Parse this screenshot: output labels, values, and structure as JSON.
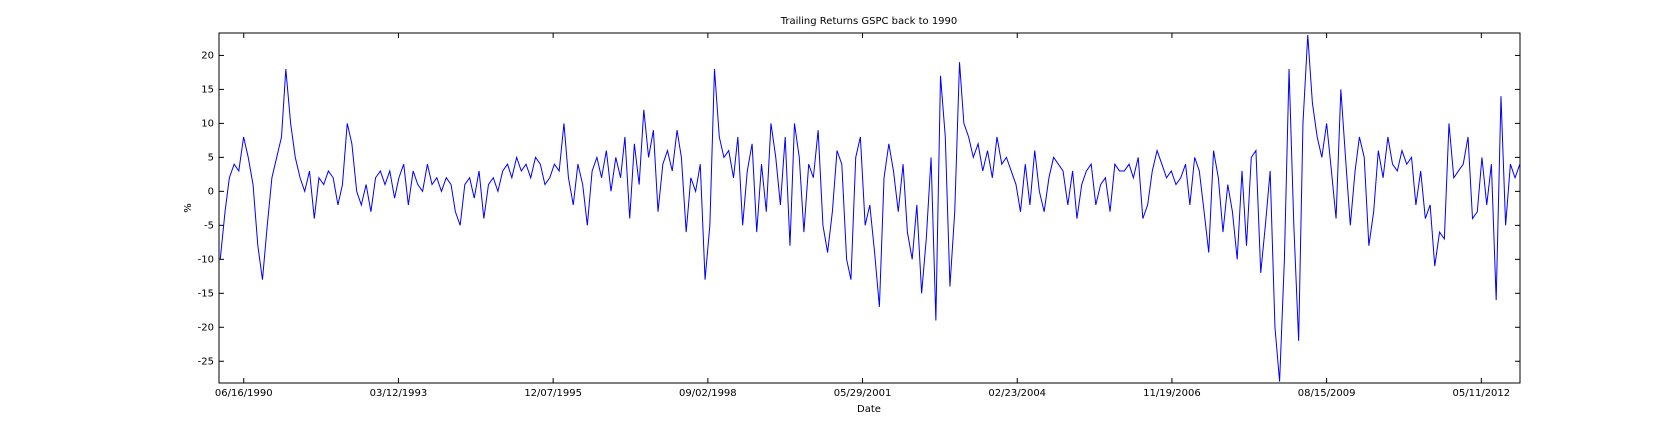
{
  "chart_data": {
    "type": "line",
    "title": "Trailing Returns GSPC back to 1990",
    "xlabel": "Date",
    "ylabel": "%",
    "color": "#0000ff",
    "xlim": [
      "1990-01-07",
      "2013-01-16"
    ],
    "xticks": [
      {
        "value": "1990-06-16",
        "label": "06/16/1990"
      },
      {
        "value": "1993-03-12",
        "label": "03/12/1993"
      },
      {
        "value": "1995-12-07",
        "label": "12/07/1995"
      },
      {
        "value": "1998-09-02",
        "label": "09/02/1998"
      },
      {
        "value": "2001-05-29",
        "label": "05/29/2001"
      },
      {
        "value": "2004-02-23",
        "label": "02/23/2004"
      },
      {
        "value": "2006-11-19",
        "label": "11/19/2006"
      },
      {
        "value": "2009-08-15",
        "label": "08/15/2009"
      },
      {
        "value": "2012-05-11",
        "label": "05/11/2012"
      }
    ],
    "ylim": [
      -28.2,
      23.3
    ],
    "yticks": [
      -25,
      -20,
      -15,
      -10,
      -5,
      0,
      5,
      10,
      15,
      20
    ],
    "x": [
      "1990-01-15",
      "1990-02-15",
      "1990-03-15",
      "1990-04-15",
      "1990-05-15",
      "1990-06-15",
      "1990-07-15",
      "1990-08-15",
      "1990-09-15",
      "1990-10-15",
      "1990-11-15",
      "1990-12-15",
      "1991-01-15",
      "1991-02-15",
      "1991-03-15",
      "1991-04-15",
      "1991-05-15",
      "1991-06-15",
      "1991-07-15",
      "1991-08-15",
      "1991-09-15",
      "1991-10-15",
      "1991-11-15",
      "1991-12-15",
      "1992-01-15",
      "1992-02-15",
      "1992-03-15",
      "1992-04-15",
      "1992-05-15",
      "1992-06-15",
      "1992-07-15",
      "1992-08-15",
      "1992-09-15",
      "1992-10-15",
      "1992-11-15",
      "1992-12-15",
      "1993-01-15",
      "1993-02-15",
      "1993-03-15",
      "1993-04-15",
      "1993-05-15",
      "1993-06-15",
      "1993-07-15",
      "1993-08-15",
      "1993-09-15",
      "1993-10-15",
      "1993-11-15",
      "1993-12-15",
      "1994-01-15",
      "1994-02-15",
      "1994-03-15",
      "1994-04-15",
      "1994-05-15",
      "1994-06-15",
      "1994-07-15",
      "1994-08-15",
      "1994-09-15",
      "1994-10-15",
      "1994-11-15",
      "1994-12-15",
      "1995-01-15",
      "1995-02-15",
      "1995-03-15",
      "1995-04-15",
      "1995-05-15",
      "1995-06-15",
      "1995-07-15",
      "1995-08-15",
      "1995-09-15",
      "1995-10-15",
      "1995-11-15",
      "1995-12-15",
      "1996-01-15",
      "1996-02-15",
      "1996-03-15",
      "1996-04-15",
      "1996-05-15",
      "1996-06-15",
      "1996-07-15",
      "1996-08-15",
      "1996-09-15",
      "1996-10-15",
      "1996-11-15",
      "1996-12-15",
      "1997-01-15",
      "1997-02-15",
      "1997-03-15",
      "1997-04-15",
      "1997-05-15",
      "1997-06-15",
      "1997-07-15",
      "1997-08-15",
      "1997-09-15",
      "1997-10-15",
      "1997-11-15",
      "1997-12-15",
      "1998-01-15",
      "1998-02-15",
      "1998-03-15",
      "1998-04-15",
      "1998-05-15",
      "1998-06-15",
      "1998-07-15",
      "1998-08-15",
      "1998-09-15",
      "1998-10-15",
      "1998-11-15",
      "1998-12-15",
      "1999-01-15",
      "1999-02-15",
      "1999-03-15",
      "1999-04-15",
      "1999-05-15",
      "1999-06-15",
      "1999-07-15",
      "1999-08-15",
      "1999-09-15",
      "1999-10-15",
      "1999-11-15",
      "1999-12-15",
      "2000-01-15",
      "2000-02-15",
      "2000-03-15",
      "2000-04-15",
      "2000-05-15",
      "2000-06-15",
      "2000-07-15",
      "2000-08-15",
      "2000-09-15",
      "2000-10-15",
      "2000-11-15",
      "2000-12-15",
      "2001-01-15",
      "2001-02-15",
      "2001-03-15",
      "2001-04-15",
      "2001-05-15",
      "2001-06-15",
      "2001-07-15",
      "2001-08-15",
      "2001-09-15",
      "2001-10-15",
      "2001-11-15",
      "2001-12-15",
      "2002-01-15",
      "2002-02-15",
      "2002-03-15",
      "2002-04-15",
      "2002-05-15",
      "2002-06-15",
      "2002-07-15",
      "2002-08-15",
      "2002-09-15",
      "2002-10-15",
      "2002-11-15",
      "2002-12-15",
      "2003-01-15",
      "2003-02-15",
      "2003-03-15",
      "2003-04-15",
      "2003-05-15",
      "2003-06-15",
      "2003-07-15",
      "2003-08-15",
      "2003-09-15",
      "2003-10-15",
      "2003-11-15",
      "2003-12-15",
      "2004-01-15",
      "2004-02-15",
      "2004-03-15",
      "2004-04-15",
      "2004-05-15",
      "2004-06-15",
      "2004-07-15",
      "2004-08-15",
      "2004-09-15",
      "2004-10-15",
      "2004-11-15",
      "2004-12-15",
      "2005-01-15",
      "2005-02-15",
      "2005-03-15",
      "2005-04-15",
      "2005-05-15",
      "2005-06-15",
      "2005-07-15",
      "2005-08-15",
      "2005-09-15",
      "2005-10-15",
      "2005-11-15",
      "2005-12-15",
      "2006-01-15",
      "2006-02-15",
      "2006-03-15",
      "2006-04-15",
      "2006-05-15",
      "2006-06-15",
      "2006-07-15",
      "2006-08-15",
      "2006-09-15",
      "2006-10-15",
      "2006-11-15",
      "2006-12-15",
      "2007-01-15",
      "2007-02-15",
      "2007-03-15",
      "2007-04-15",
      "2007-05-15",
      "2007-06-15",
      "2007-07-15",
      "2007-08-15",
      "2007-09-15",
      "2007-10-15",
      "2007-11-15",
      "2007-12-15",
      "2008-01-15",
      "2008-02-15",
      "2008-03-15",
      "2008-04-15",
      "2008-05-15",
      "2008-06-15",
      "2008-07-15",
      "2008-08-15",
      "2008-09-15",
      "2008-10-15",
      "2008-11-15",
      "2008-12-15",
      "2009-01-15",
      "2009-02-15",
      "2009-03-15",
      "2009-04-15",
      "2009-05-15",
      "2009-06-15",
      "2009-07-15",
      "2009-08-15",
      "2009-09-15",
      "2009-10-15",
      "2009-11-15",
      "2009-12-15",
      "2010-01-15",
      "2010-02-15",
      "2010-03-15",
      "2010-04-15",
      "2010-05-15",
      "2010-06-15",
      "2010-07-15",
      "2010-08-15",
      "2010-09-15",
      "2010-10-15",
      "2010-11-15",
      "2010-12-15",
      "2011-01-15",
      "2011-02-15",
      "2011-03-15",
      "2011-04-15",
      "2011-05-15",
      "2011-06-15",
      "2011-07-15",
      "2011-08-15",
      "2011-09-15",
      "2011-10-15",
      "2011-11-15",
      "2011-12-15",
      "2012-01-15",
      "2012-02-15",
      "2012-03-15",
      "2012-04-15",
      "2012-05-15",
      "2012-06-15",
      "2012-07-15",
      "2012-08-15",
      "2012-09-15",
      "2012-10-15",
      "2012-11-15",
      "2012-12-15",
      "2013-01-15"
    ],
    "values": [
      -10,
      -3,
      2,
      4,
      3,
      8,
      5,
      1,
      -8,
      -13,
      -5,
      2,
      5,
      8,
      18,
      10,
      5,
      2,
      0,
      3,
      -4,
      2,
      1,
      3,
      2,
      -2,
      1,
      10,
      7,
      0,
      -2,
      1,
      -3,
      2,
      3,
      1,
      3,
      -1,
      2,
      4,
      -2,
      3,
      1,
      0,
      4,
      1,
      2,
      0,
      2,
      1,
      -3,
      -5,
      1,
      2,
      -1,
      3,
      -4,
      1,
      2,
      0,
      3,
      4,
      2,
      5,
      3,
      4,
      2,
      5,
      4,
      1,
      2,
      4,
      3,
      10,
      2,
      -2,
      4,
      1,
      -5,
      3,
      5,
      2,
      6,
      0,
      5,
      2,
      8,
      -4,
      7,
      1,
      12,
      5,
      9,
      -3,
      4,
      6,
      3,
      9,
      5,
      -6,
      2,
      0,
      4,
      -13,
      -5,
      18,
      8,
      5,
      6,
      2,
      8,
      -5,
      3,
      7,
      -6,
      4,
      -3,
      10,
      5,
      -2,
      8,
      -8,
      10,
      5,
      -6,
      4,
      2,
      9,
      -5,
      -9,
      -3,
      6,
      4,
      -10,
      -13,
      5,
      8,
      -5,
      -2,
      -9,
      -17,
      2,
      7,
      3,
      -3,
      4,
      -6,
      -10,
      -2,
      -15,
      -7,
      5,
      -19,
      17,
      8,
      -14,
      -3,
      19,
      10,
      8,
      5,
      7,
      3,
      6,
      2,
      8,
      4,
      5,
      3,
      1,
      -3,
      4,
      -2,
      6,
      0,
      -3,
      2,
      5,
      4,
      3,
      -2,
      3,
      -4,
      1,
      3,
      4,
      -2,
      1,
      2,
      -3,
      4,
      3,
      3,
      4,
      2,
      5,
      -4,
      -2,
      3,
      6,
      4,
      2,
      3,
      1,
      2,
      4,
      -2,
      5,
      3,
      -3,
      -9,
      6,
      2,
      -6,
      1,
      -3,
      -10,
      3,
      -8,
      5,
      6,
      -12,
      -5,
      3,
      -20,
      -28,
      -10,
      18,
      -5,
      -22,
      10,
      23,
      13,
      8,
      5,
      10,
      3,
      -4,
      15,
      5,
      -5,
      3,
      8,
      5,
      -8,
      -3,
      6,
      2,
      8,
      4,
      3,
      6,
      4,
      5,
      -2,
      3,
      -4,
      -2,
      -11,
      -6,
      -7,
      10,
      2,
      3,
      4,
      8,
      -4,
      -3,
      5,
      -2,
      4,
      -16,
      14,
      -5,
      4,
      2,
      4
    ]
  }
}
